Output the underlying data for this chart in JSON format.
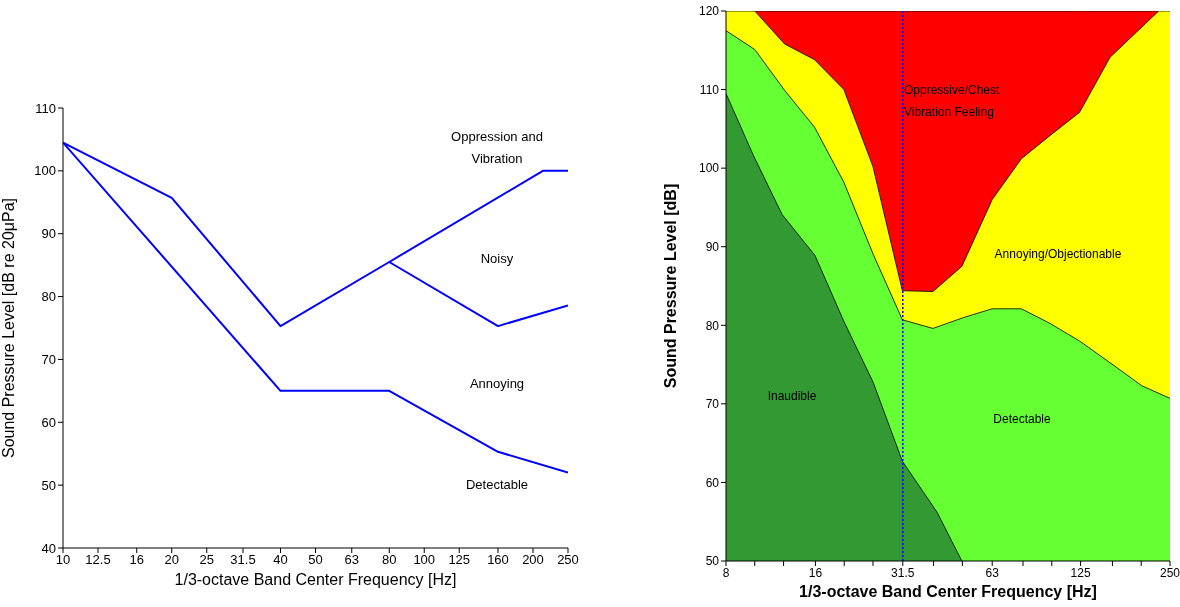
{
  "chart_data": [
    {
      "type": "line",
      "xlabel": "1/3-octave Band Center Frequency [Hz]",
      "ylabel": "Sound Pressure Level [dB re 20μPa]",
      "log": "x",
      "xlim": [
        10,
        250
      ],
      "xticks": [
        10,
        12.5,
        16,
        20,
        25,
        31.5,
        40,
        50,
        63,
        80,
        100,
        125,
        160,
        200,
        250
      ],
      "ylim": [
        40,
        110
      ],
      "yticks": [
        40,
        50,
        60,
        70,
        80,
        90,
        100,
        110
      ],
      "series": [
        {
          "color": "#0000ff",
          "x": [
            10,
            20,
            40,
            80,
            213,
            250
          ],
          "values": [
            104.5,
            95.7,
            75.3,
            85.5,
            100,
            100
          ]
        },
        {
          "color": "#0000ff",
          "x": [
            80,
            160,
            250
          ],
          "values": [
            85.5,
            75.3,
            78.6
          ]
        },
        {
          "color": "#0000ff",
          "x": [
            10,
            40,
            80,
            160,
            250
          ],
          "values": [
            104.5,
            65,
            65,
            55.3,
            52
          ]
        }
      ],
      "annotations": [
        "Oppression and Vibration",
        "Noisy",
        "Annoying",
        "Detectable"
      ]
    },
    {
      "type": "area",
      "xlabel": "1/3-octave Band Center Frequency [Hz]",
      "ylabel": "Sound Pressure Level [dB]",
      "log": "x",
      "xlim": [
        8,
        250
      ],
      "xticks": [
        8,
        {
          "value": 10,
          "label": null
        },
        {
          "value": 12.5,
          "label": null
        },
        16,
        {
          "value": 20,
          "label": null
        },
        {
          "value": 25,
          "label": null
        },
        31.5,
        {
          "value": 40,
          "label": null
        },
        {
          "value": 50,
          "label": null
        },
        63,
        {
          "value": 80,
          "label": null
        },
        {
          "value": 100,
          "label": null
        },
        125,
        {
          "value": 160,
          "label": null
        },
        {
          "value": 200,
          "label": null
        },
        250
      ],
      "ylim": [
        50,
        120
      ],
      "yticks": [
        50,
        60,
        70,
        80,
        90,
        100,
        110,
        120
      ],
      "ref_lines": [
        {
          "axis": "x",
          "value": 31.5,
          "color": "#0000ff",
          "line_style": "dotted"
        }
      ],
      "series": [
        {
          "name": "Inaudible",
          "color": "#339933",
          "x": [
            8,
            9.87,
            12.36,
            15.94,
            19.95,
            25,
            31.4,
            41.1,
            49.8
          ],
          "values": [
            109.5,
            101.7,
            94.1,
            88.9,
            80.5,
            72.8,
            62.7,
            56.2,
            50
          ]
        },
        {
          "name": "Detectable",
          "color": "#66ff33",
          "x": [
            8,
            10,
            12.6,
            15.9,
            19.95,
            25,
            31.4,
            39.8,
            50.6,
            63,
            79,
            99,
            124,
            163,
            201,
            250
          ],
          "values": [
            117.5,
            115.1,
            109.9,
            105.2,
            98.2,
            89.1,
            80.7,
            79.6,
            81,
            82.1,
            82.1,
            80.2,
            78,
            74.8,
            72.3,
            70.7
          ]
        },
        {
          "name": "Annoying/Objectionable",
          "color": "#ffff00",
          "x": [
            8,
            10,
            12.6,
            15.9,
            19.95,
            25,
            31.4,
            39.8,
            49.8,
            63,
            79,
            99,
            124,
            157,
            229,
            250
          ],
          "values": [
            120,
            120,
            115.8,
            113.8,
            110,
            100.2,
            84.4,
            84.3,
            87.5,
            96,
            101.2,
            104.2,
            107.1,
            114.1,
            120,
            120
          ]
        },
        {
          "name": "Oppressive/Chest Vibration Feeling",
          "color": "#ff0000",
          "x": [
            10,
            16,
            31.5,
            63,
            125,
            229
          ],
          "values": [
            120,
            120,
            120,
            120,
            120,
            120
          ]
        }
      ]
    }
  ]
}
